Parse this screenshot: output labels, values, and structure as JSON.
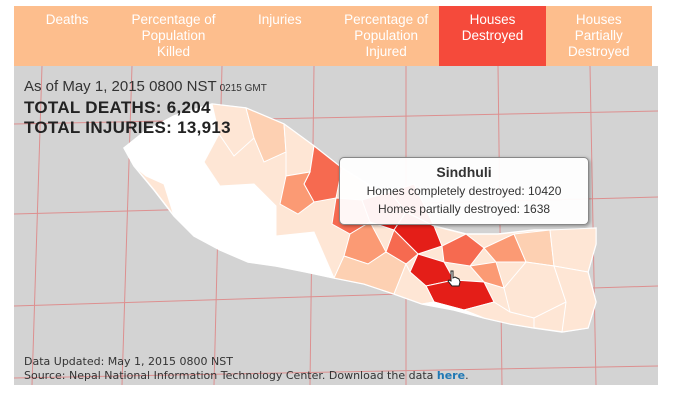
{
  "tabs": [
    {
      "label": "Deaths",
      "active": false
    },
    {
      "label": "Percentage of\nPopulation\nKilled",
      "active": false
    },
    {
      "label": "Injuries",
      "active": false
    },
    {
      "label": "Percentage of\nPopulation\nInjured",
      "active": false
    },
    {
      "label": "Houses\nDestroyed",
      "active": true
    },
    {
      "label": "Houses\nPartially\nDestroyed",
      "active": false
    }
  ],
  "header": {
    "as_of": "As of May 1, 2015 0800 NST",
    "as_of_gmt": "0215 GMT",
    "total_deaths": "TOTAL DEATHS: 6,204",
    "total_injuries": "TOTAL INJURIES: 13,913"
  },
  "tooltip": {
    "district": "Sindhuli",
    "line1": "Homes completely destroyed: 10420",
    "line2": "Homes partially destroyed: 1638"
  },
  "footer": {
    "updated": "Data Updated: May 1, 2015 0800 NST",
    "source": "Source: Nepal National Information Technology Center. Download the data ",
    "link_text": "here",
    "trailing": "."
  },
  "colors": {
    "tab_bg": "#fdbe8d",
    "tab_active": "#f54a3b",
    "map_bg": "#d3d3d3",
    "grid": "#e07f7f",
    "scale": [
      "#ffffff",
      "#fee6d5",
      "#fdd0b2",
      "#fb9a74",
      "#f66a50",
      "#e41e18"
    ]
  }
}
